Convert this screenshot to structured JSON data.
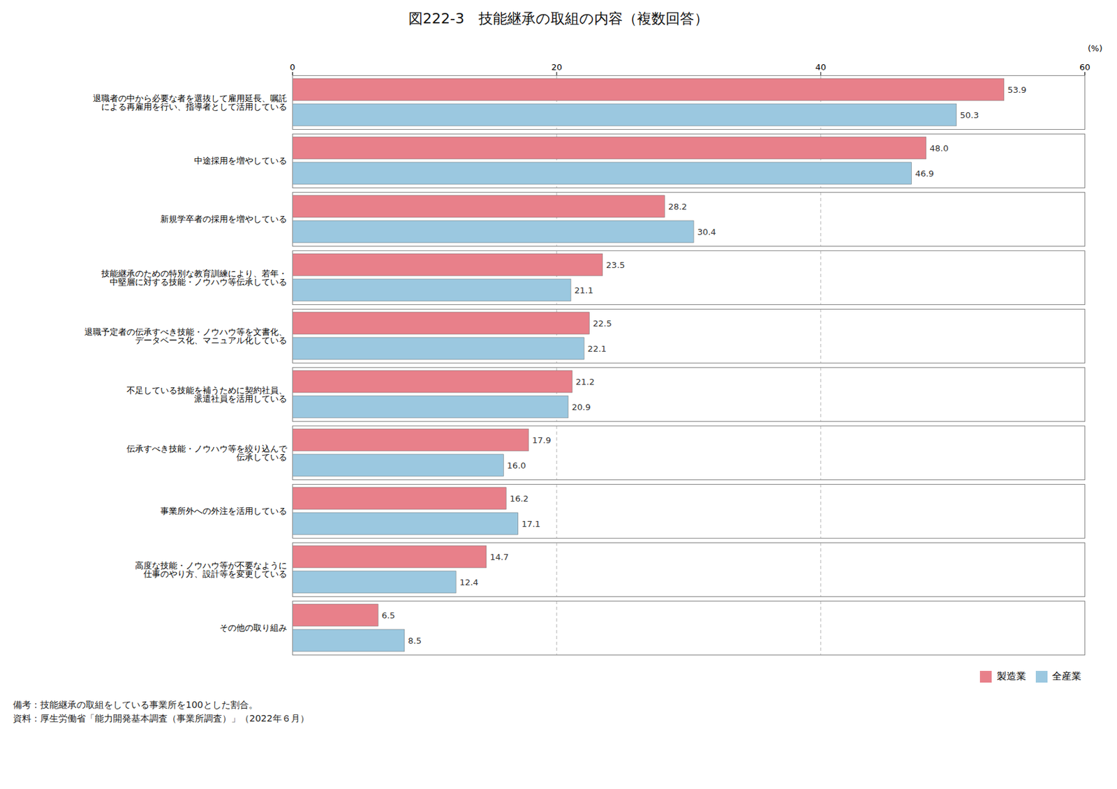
{
  "chart_data": {
    "type": "bar",
    "orientation": "horizontal",
    "title": "図222-3　技能継承の取組の内容（複数回答）",
    "xlabel": "(%)",
    "categories": [
      "退職者の中から必要な者を選抜して雇用延長、嘱託\nによる再雇用を行い、指導者として活用している",
      "中途採用を増やしている",
      "新規学卒者の採用を増やしている",
      "技能継承のための特別な教育訓練により、若年・\n中堅層に対する技能・ノウハウ等伝承している",
      "退職予定者の伝承すべき技能・ノウハウ等を文書化、\nデータベース化、マニュアル化している",
      "不足している技能を補うために契約社員、\n派遣社員を活用している",
      "伝承すべき技能・ノウハウ等を絞り込んで\n伝承している",
      "事業所外への外注を活用している",
      "高度な技能・ノウハウ等が不要なように\n仕事のやり方、設計等を変更している",
      "その他の取り組み"
    ],
    "series": [
      {
        "name": "製造業",
        "color": "#e8808a",
        "values": [
          53.9,
          48.0,
          28.2,
          23.5,
          22.5,
          21.2,
          17.9,
          16.2,
          14.7,
          6.5
        ],
        "value_labels": [
          "53.9",
          "48.0",
          "28.2",
          "23.5",
          "22.5",
          "21.2",
          "17.9",
          "16.2",
          "14.7",
          "6.5"
        ]
      },
      {
        "name": "全産業",
        "color": "#9bc8e0",
        "values": [
          50.3,
          46.9,
          30.4,
          21.1,
          22.1,
          20.9,
          16.0,
          17.1,
          12.4,
          8.5
        ],
        "value_labels": [
          "50.3",
          "46.9",
          "30.4",
          "21.1",
          "22.1",
          "20.9",
          "16.0",
          "17.1",
          "12.4",
          "8.5"
        ]
      }
    ],
    "xlim": [
      0,
      60
    ],
    "xticks": [
      0,
      20,
      40,
      60
    ],
    "grid": true,
    "data_labels": true,
    "legend": "lower right",
    "annotations": [
      "備考：技能継承の取組をしている事業所を100とした割合。",
      "資料：厚生労働省「能力開発基本調査（事業所調査）」（2022年６月）"
    ]
  }
}
